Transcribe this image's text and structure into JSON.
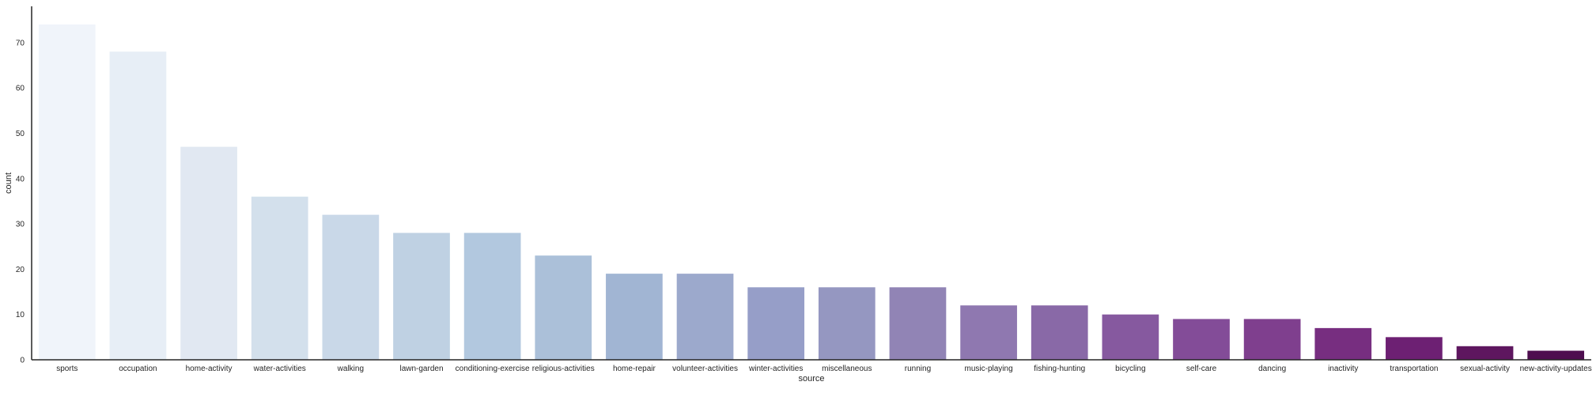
{
  "chart_data": {
    "type": "bar",
    "title": "",
    "xlabel": "source",
    "ylabel": "count",
    "ylim": [
      0,
      78
    ],
    "yticks": [
      0,
      10,
      20,
      30,
      40,
      50,
      60,
      70
    ],
    "grid": false,
    "legend": "none",
    "categories": [
      "sports",
      "occupation",
      "home-activity",
      "water-activities",
      "walking",
      "lawn-garden",
      "conditioning-exercise",
      "religious-activities",
      "home-repair",
      "volunteer-activities",
      "winter-activities",
      "miscellaneous",
      "running",
      "music-playing",
      "fishing-hunting",
      "bicycling",
      "self-care",
      "dancing",
      "inactivity",
      "transportation",
      "sexual-activity",
      "new-activity-updates"
    ],
    "values": [
      74,
      68,
      47,
      36,
      32,
      28,
      28,
      23,
      19,
      19,
      16,
      16,
      16,
      12,
      12,
      10,
      9,
      9,
      7,
      5,
      3,
      2
    ],
    "colors": [
      "#f0f4fa",
      "#e7eef6",
      "#e1e8f2",
      "#d3e0ec",
      "#c9d8e8",
      "#bfd1e3",
      "#b2c8df",
      "#abc0d9",
      "#a1b5d3",
      "#9ca9cc",
      "#969ec8",
      "#9597c1",
      "#9184b5",
      "#8f78b0",
      "#8969a7",
      "#86599f",
      "#834c98",
      "#7f3f8e",
      "#772e80",
      "#6d2073",
      "#5e165f",
      "#4e0e4f"
    ]
  }
}
